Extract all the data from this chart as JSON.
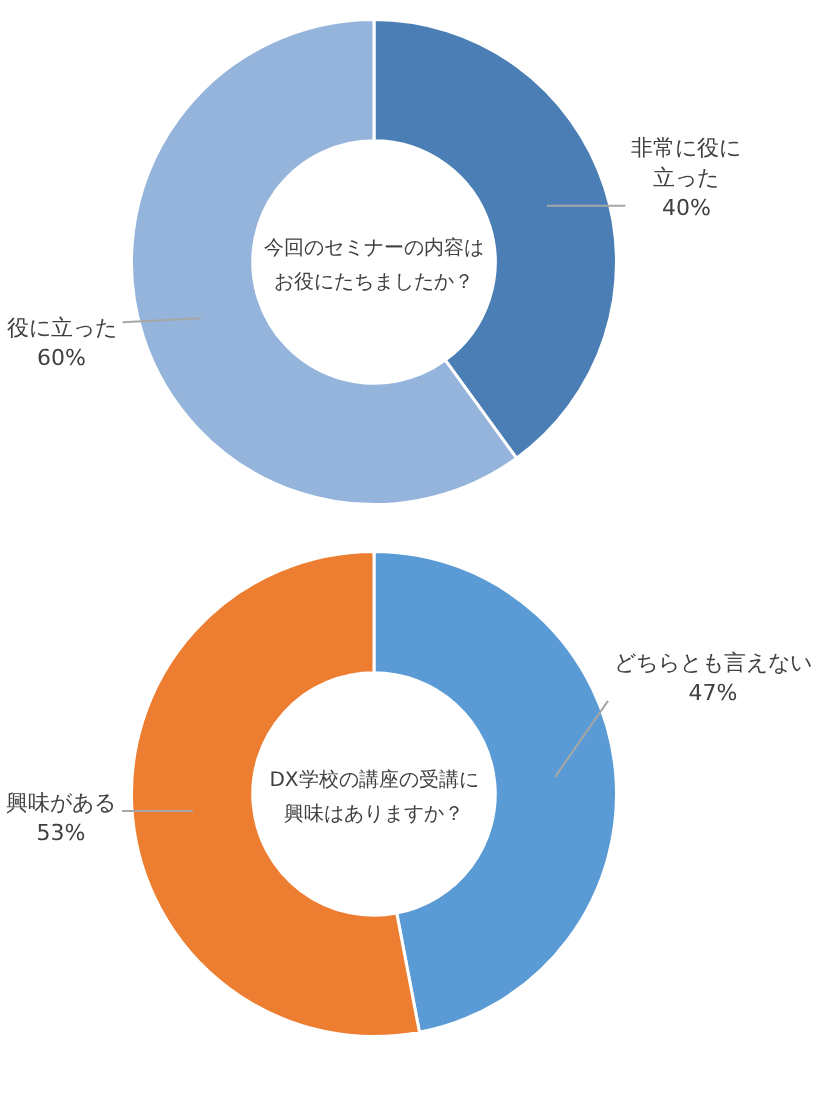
{
  "chart_data": [
    {
      "type": "donut",
      "title": "今回のセミナーの内容はお役にたちましたか？",
      "categories": [
        "非常に役に立った",
        "役に立った"
      ],
      "values": [
        40,
        60
      ],
      "colors": [
        "#4a7eb4",
        "#95b4db"
      ],
      "value_labels": [
        "40%",
        "60%"
      ]
    },
    {
      "type": "donut",
      "title": "DX学校の講座の受講に興味はありますか？",
      "categories": [
        "どちらとも言えない",
        "興味がある"
      ],
      "values": [
        47,
        53
      ],
      "colors": [
        "#5b9bd5",
        "#ed7d31"
      ],
      "value_labels": [
        "47%",
        "53%"
      ]
    }
  ]
}
